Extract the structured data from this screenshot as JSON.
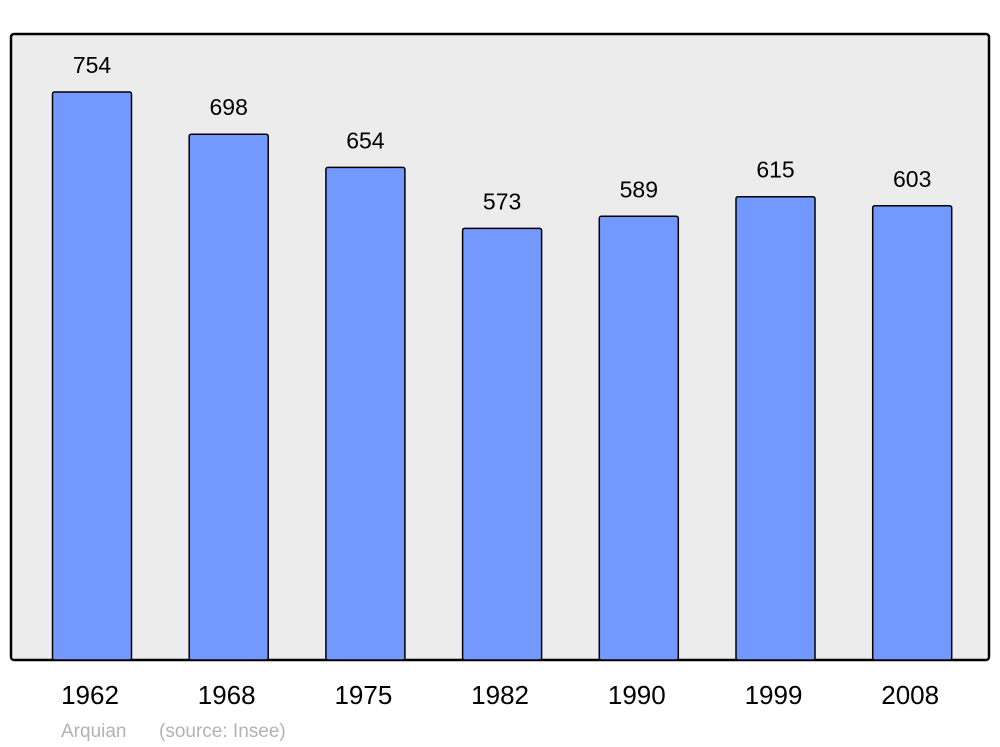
{
  "chart_data": {
    "type": "bar",
    "categories": [
      "1962",
      "1968",
      "1975",
      "1982",
      "1990",
      "1999",
      "2008"
    ],
    "values": [
      754,
      698,
      654,
      573,
      589,
      615,
      603
    ],
    "title": "",
    "xlabel": "",
    "ylabel": "",
    "ylim": [
      0,
      831
    ],
    "grid": false,
    "data_labels": true,
    "colors": {
      "bar": "#7399ff",
      "plot_background": "#ececec",
      "border": "#000000"
    }
  },
  "footer": {
    "place": "Arquian",
    "source": "(source: Insee)"
  }
}
